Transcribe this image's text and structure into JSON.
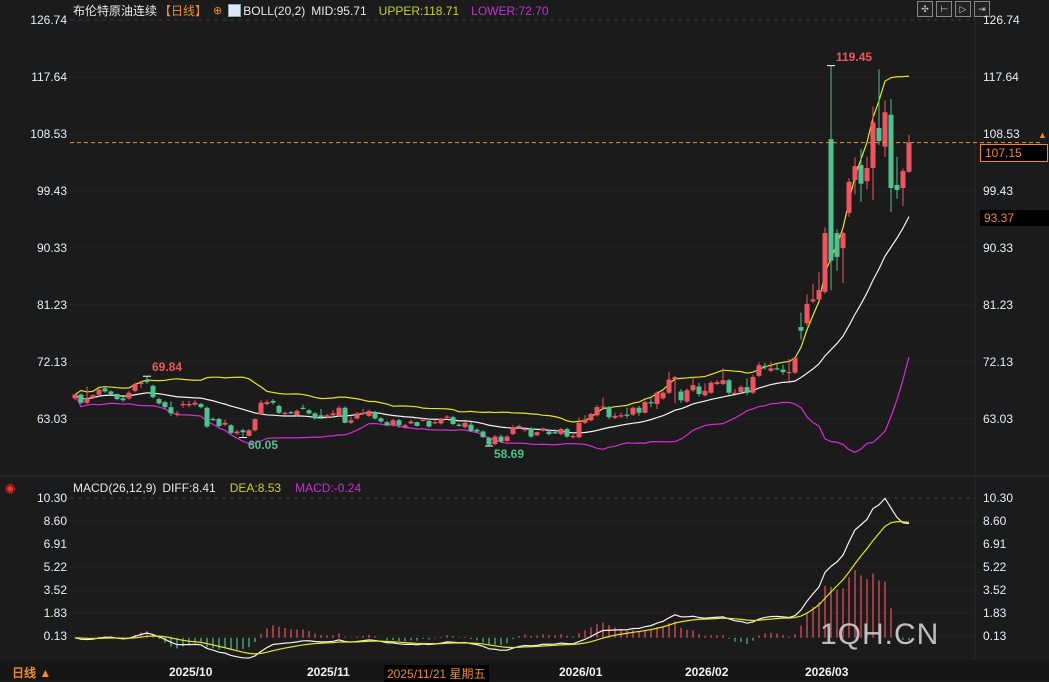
{
  "header": {
    "symbol": "布伦特原油连续",
    "period": "【日线】",
    "add_icon": "crosshair-plus-icon",
    "indicator_icon": "indicator-chart-icon",
    "boll_label": "BOLL(20,2)",
    "mid": "MID:95.71",
    "upper": "UPPER:118.71",
    "lower": "LOWER:72.70"
  },
  "macd_header": {
    "label": "MACD(26,12,9)",
    "diff": "DIFF:8.41",
    "dea": "DEA:8.53",
    "macd": "MACD:-0.24",
    "icon": "target-icon"
  },
  "toolbar": [
    "move-icon",
    "zoom-in-range-icon",
    "play-range-icon",
    "jump-end-icon"
  ],
  "period_switch": "日线 ▲",
  "hover_date": "2025/11/21 星期五",
  "current_price": "107.15",
  "marker_price": "93.37",
  "watermark": "1QH.CN",
  "colors": {
    "up": "#ee5560",
    "down": "#52c18f",
    "mid": "#f2f2f2",
    "upper": "#e6e620",
    "lower": "#d82ad8",
    "diff": "#f2f2f2",
    "dea": "#e6e620",
    "accent": "#f08c28",
    "background": "#1b1b1b"
  },
  "chart_data": [
    {
      "type": "candlestick",
      "title": "布伦特原油连续",
      "indicator": "BOLL(20,2)",
      "y_ticks": [
        "126.74",
        "117.64",
        "108.53",
        "99.43",
        "90.33",
        "81.23",
        "72.13",
        "63.03"
      ],
      "ylim": [
        56.0,
        126.74
      ],
      "x_labels": [
        {
          "label": "2025/10",
          "index": 19
        },
        {
          "label": "2025/11",
          "index": 42
        },
        {
          "label": "2026/01",
          "index": 84
        },
        {
          "label": "2026/02",
          "index": 105
        },
        {
          "label": "2026/03",
          "index": 125
        }
      ],
      "annotations": [
        {
          "label": "69.84",
          "index": 12,
          "value": 69.84,
          "kind": "high"
        },
        {
          "label": "60.05",
          "index": 28,
          "value": 60.05,
          "kind": "low"
        },
        {
          "label": "58.69",
          "index": 69,
          "value": 58.69,
          "kind": "low"
        },
        {
          "label": "119.45",
          "index": 126,
          "value": 119.45,
          "kind": "high"
        }
      ],
      "ohlc": [
        [
          66.3,
          67.0,
          66.0,
          66.9
        ],
        [
          66.9,
          67.1,
          65.4,
          65.6
        ],
        [
          65.6,
          68.2,
          65.4,
          66.3
        ],
        [
          66.4,
          66.9,
          66.2,
          66.8
        ],
        [
          66.9,
          67.9,
          66.7,
          67.7
        ],
        [
          67.9,
          68.1,
          67.2,
          67.4
        ],
        [
          67.4,
          67.6,
          66.9,
          67.0
        ],
        [
          67.0,
          67.1,
          66.0,
          66.2
        ],
        [
          66.3,
          66.6,
          65.7,
          66.0
        ],
        [
          66.3,
          67.5,
          66.1,
          67.2
        ],
        [
          67.5,
          68.8,
          67.3,
          68.6
        ],
        [
          68.6,
          69.1,
          68.0,
          68.8
        ],
        [
          69.2,
          69.84,
          68.6,
          68.9
        ],
        [
          68.3,
          68.5,
          66.3,
          66.5
        ],
        [
          66.2,
          66.4,
          65.3,
          65.5
        ],
        [
          65.7,
          65.9,
          64.6,
          64.9
        ],
        [
          64.9,
          65.8,
          63.5,
          63.9
        ],
        [
          63.7,
          64.3,
          63.4,
          63.9
        ],
        [
          65.2,
          65.9,
          64.8,
          65.4
        ],
        [
          65.2,
          65.9,
          64.9,
          65.4
        ],
        [
          65.3,
          66.0,
          65.1,
          65.6
        ],
        [
          65.4,
          65.6,
          64.7,
          64.9
        ],
        [
          64.8,
          65.0,
          61.6,
          61.8
        ],
        [
          63.0,
          63.3,
          62.7,
          62.8
        ],
        [
          63.0,
          63.2,
          61.7,
          61.9
        ],
        [
          62.1,
          62.9,
          61.9,
          62.4
        ],
        [
          62.0,
          62.2,
          60.6,
          60.8
        ],
        [
          60.7,
          61.3,
          60.5,
          61.0
        ],
        [
          61.2,
          61.4,
          60.05,
          60.9
        ],
        [
          60.3,
          61.4,
          60.2,
          61.2
        ],
        [
          61.2,
          63.1,
          61.0,
          63.0
        ],
        [
          63.8,
          66.0,
          63.6,
          65.6
        ],
        [
          65.4,
          66.1,
          65.2,
          65.7
        ],
        [
          65.9,
          66.2,
          65.3,
          65.6
        ],
        [
          65.1,
          65.3,
          63.8,
          64.0
        ],
        [
          63.8,
          64.2,
          63.6,
          64.0
        ],
        [
          64.1,
          64.3,
          63.8,
          63.9
        ],
        [
          63.6,
          64.5,
          63.4,
          64.3
        ],
        [
          64.8,
          65.3,
          64.5,
          64.6
        ],
        [
          64.4,
          64.6,
          63.7,
          63.9
        ],
        [
          63.9,
          64.1,
          62.9,
          63.1
        ],
        [
          63.6,
          64.6,
          63.0,
          63.3
        ],
        [
          63.3,
          63.8,
          63.1,
          63.6
        ],
        [
          63.6,
          64.4,
          63.5,
          63.9
        ],
        [
          63.5,
          65.1,
          63.4,
          64.8
        ],
        [
          64.8,
          65.0,
          62.3,
          62.4
        ],
        [
          62.4,
          63.4,
          62.2,
          62.8
        ],
        [
          63.1,
          64.1,
          62.9,
          63.9
        ],
        [
          63.8,
          64.6,
          63.6,
          64.0
        ],
        [
          63.5,
          64.5,
          63.3,
          64.3
        ],
        [
          64.1,
          64.3,
          62.9,
          63.1
        ],
        [
          63.1,
          63.3,
          62.4,
          62.6
        ],
        [
          62.5,
          62.7,
          61.9,
          62.0
        ],
        [
          62.0,
          63.0,
          61.8,
          62.8
        ],
        [
          62.8,
          63.0,
          61.6,
          62.0
        ],
        [
          61.7,
          62.2,
          61.5,
          62.0
        ],
        [
          62.3,
          62.9,
          62.2,
          62.6
        ],
        [
          62.5,
          62.6,
          61.8,
          61.9
        ],
        [
          62.7,
          63.2,
          62.6,
          62.9
        ],
        [
          62.7,
          63.0,
          61.6,
          61.8
        ],
        [
          62.3,
          62.9,
          62.2,
          62.5
        ],
        [
          62.3,
          63.2,
          62.1,
          63.0
        ],
        [
          63.2,
          63.6,
          63.0,
          63.4
        ],
        [
          63.3,
          63.5,
          62.0,
          62.2
        ],
        [
          62.1,
          62.3,
          61.8,
          61.9
        ],
        [
          61.7,
          62.6,
          61.5,
          62.4
        ],
        [
          62.1,
          62.5,
          60.9,
          61.1
        ],
        [
          61.3,
          61.5,
          60.8,
          61.0
        ],
        [
          61.0,
          61.2,
          60.0,
          60.1
        ],
        [
          60.0,
          60.2,
          58.69,
          58.9
        ],
        [
          59.0,
          60.4,
          58.8,
          60.2
        ],
        [
          60.2,
          60.5,
          59.2,
          59.4
        ],
        [
          59.5,
          60.4,
          59.3,
          60.2
        ],
        [
          60.6,
          62.0,
          60.4,
          61.7
        ],
        [
          61.7,
          62.1,
          61.5,
          61.9
        ],
        [
          61.2,
          61.6,
          61.0,
          61.4
        ],
        [
          61.5,
          61.7,
          60.0,
          60.2
        ],
        [
          60.4,
          61.0,
          60.3,
          60.9
        ],
        [
          61.2,
          61.6,
          61.0,
          61.5
        ],
        [
          61.0,
          61.3,
          60.4,
          60.6
        ],
        [
          60.9,
          61.4,
          60.6,
          60.7
        ],
        [
          60.6,
          61.6,
          60.4,
          61.4
        ],
        [
          61.4,
          61.6,
          60.0,
          60.2
        ],
        [
          60.1,
          60.6,
          59.9,
          60.3
        ],
        [
          60.1,
          63.2,
          59.9,
          62.4
        ],
        [
          62.4,
          63.6,
          62.2,
          62.9
        ],
        [
          62.8,
          64.0,
          62.6,
          63.8
        ],
        [
          63.6,
          65.2,
          63.4,
          64.9
        ],
        [
          64.9,
          66.4,
          64.6,
          65.0
        ],
        [
          64.9,
          65.1,
          63.0,
          63.3
        ],
        [
          63.2,
          64.0,
          63.0,
          63.5
        ],
        [
          63.4,
          64.0,
          63.2,
          63.6
        ],
        [
          63.7,
          64.8,
          63.2,
          63.5
        ],
        [
          63.7,
          65.0,
          63.5,
          64.8
        ],
        [
          64.8,
          65.1,
          63.5,
          64.0
        ],
        [
          64.0,
          65.9,
          63.9,
          65.7
        ],
        [
          65.7,
          66.3,
          64.9,
          65.5
        ],
        [
          65.4,
          67.4,
          64.6,
          67.2
        ],
        [
          66.3,
          67.4,
          66.1,
          67.2
        ],
        [
          67.2,
          70.5,
          67.0,
          69.3
        ],
        [
          69.4,
          69.9,
          65.5,
          69.7
        ],
        [
          67.4,
          67.8,
          65.6,
          66.0
        ],
        [
          65.8,
          67.9,
          65.6,
          67.6
        ],
        [
          67.6,
          69.7,
          67.3,
          68.4
        ],
        [
          68.2,
          68.8,
          66.6,
          67.0
        ],
        [
          66.8,
          68.7,
          66.6,
          67.5
        ],
        [
          67.2,
          69.1,
          67.0,
          68.8
        ],
        [
          68.6,
          69.2,
          68.4,
          68.9
        ],
        [
          68.6,
          71.1,
          68.4,
          69.2
        ],
        [
          69.2,
          69.4,
          66.9,
          67.2
        ],
        [
          67.0,
          67.8,
          66.9,
          67.2
        ],
        [
          67.3,
          68.4,
          67.1,
          68.1
        ],
        [
          68.1,
          69.5,
          66.8,
          67.2
        ],
        [
          67.2,
          70.1,
          67.0,
          69.7
        ],
        [
          69.9,
          72.0,
          69.7,
          71.6
        ],
        [
          71.5,
          72.0,
          70.9,
          71.3
        ],
        [
          70.7,
          72.1,
          70.5,
          71.1
        ],
        [
          71.1,
          71.9,
          70.8,
          70.9
        ],
        [
          70.9,
          71.7,
          70.1,
          70.5
        ],
        [
          70.4,
          72.6,
          69.0,
          70.5
        ],
        [
          70.4,
          73.0,
          70.2,
          72.8
        ],
        [
          77.7,
          80.0,
          75.7,
          77.1
        ],
        [
          78.3,
          82.9,
          77.9,
          81.4
        ],
        [
          81.8,
          84.6,
          81.5,
          82.1
        ],
        [
          82.1,
          86.5,
          81.9,
          83.6
        ],
        [
          83.3,
          93.6,
          83.0,
          92.7
        ],
        [
          107.7,
          119.45,
          83.6,
          88.3
        ],
        [
          92.7,
          93.3,
          86.7,
          88.9
        ],
        [
          90.3,
          92.9,
          84.7,
          92.7
        ],
        [
          95.9,
          101.5,
          95.3,
          100.9
        ],
        [
          101.2,
          104.8,
          98.9,
          103.4
        ],
        [
          103.6,
          106.1,
          97.7,
          100.6
        ],
        [
          101.0,
          104.9,
          99.7,
          103.1
        ],
        [
          103.1,
          112.9,
          98.0,
          110.4
        ],
        [
          109.5,
          118.9,
          106.8,
          107.4
        ],
        [
          106.5,
          113.9,
          104.9,
          112.0
        ],
        [
          111.6,
          114.1,
          96.1,
          99.9
        ],
        [
          100.4,
          104.9,
          98.2,
          99.6
        ],
        [
          99.9,
          103.0,
          97.0,
          102.6
        ],
        [
          102.5,
          108.4,
          102.3,
          107.15
        ]
      ]
    },
    {
      "type": "bar+line",
      "title": "MACD(26,12,9)",
      "y_ticks": [
        "10.30",
        "8.60",
        "6.91",
        "5.22",
        "3.52",
        "1.83",
        "0.13"
      ],
      "ylim": [
        -1.5,
        10.8
      ],
      "series": [
        {
          "name": "DIFF"
        },
        {
          "name": "DEA"
        },
        {
          "name": "MACD"
        }
      ]
    }
  ]
}
